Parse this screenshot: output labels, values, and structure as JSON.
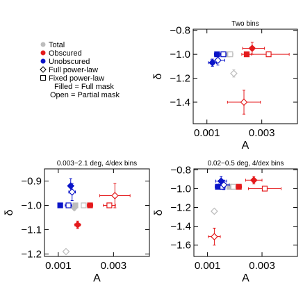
{
  "legend": {
    "entries": [
      {
        "label": "Total",
        "marker": "circle",
        "filled": true,
        "color": "#bdbdbd"
      },
      {
        "label": "Obscured",
        "marker": "circle",
        "filled": true,
        "color": "#e41a1c"
      },
      {
        "label": "Unobscured",
        "marker": "circle",
        "filled": true,
        "color": "#0a14c8"
      },
      {
        "label": "Full power-law",
        "marker": "diamond",
        "filled": false,
        "color": "#000000"
      },
      {
        "label": "Fixed power-law",
        "marker": "square",
        "filled": false,
        "color": "#000000"
      },
      {
        "label": "Filled = Full mask",
        "marker": "none"
      },
      {
        "label": "Open = Partial mask",
        "marker": "none"
      }
    ]
  },
  "colors": {
    "total": "#bdbdbd",
    "obscured": "#e41a1c",
    "unobscured": "#0a14c8",
    "axis": "#000000"
  },
  "chart_data": [
    {
      "type": "scatter",
      "title": "Two bins",
      "xlabel": "A",
      "ylabel": "δ",
      "xlim": [
        0.0005,
        0.0043
      ],
      "ylim": [
        -1.58,
        -0.79
      ],
      "xticks": [
        0.001,
        0.003
      ],
      "xtick_labels": [
        "0.001",
        "0.003"
      ],
      "yticks": [
        -0.8,
        -1.0,
        -1.2,
        -1.4
      ],
      "ytick_labels": [
        "−0.8",
        "−1.0",
        "−1.2",
        "−1.4"
      ],
      "points": [
        {
          "group": "total",
          "shape": "square",
          "filled": true,
          "x": 0.00175,
          "y": -1.0,
          "xerr": [
            0.0001,
            0.0001
          ],
          "yerr": [
            0.01,
            0.01
          ]
        },
        {
          "group": "total",
          "shape": "square",
          "filled": false,
          "x": 0.00185,
          "y": -1.0,
          "xerr": [
            0.0001,
            0.0001
          ],
          "yerr": [
            0.01,
            0.01
          ]
        },
        {
          "group": "total",
          "shape": "diamond",
          "filled": false,
          "x": 0.00198,
          "y": -1.16,
          "xerr": [
            8e-05,
            8e-05
          ],
          "yerr": [
            0.03,
            0.03
          ]
        },
        {
          "group": "obscured",
          "shape": "square",
          "filled": true,
          "x": 0.00245,
          "y": -1.0,
          "xerr": [
            0.00018,
            0.00018
          ],
          "yerr": [
            0.01,
            0.01
          ]
        },
        {
          "group": "obscured",
          "shape": "square",
          "filled": false,
          "x": 0.00325,
          "y": -1.0,
          "xerr": [
            0.00075,
            0.00075
          ],
          "yerr": [
            0.01,
            0.01
          ]
        },
        {
          "group": "obscured",
          "shape": "diamond",
          "filled": true,
          "x": 0.00265,
          "y": -0.95,
          "xerr": [
            0.00035,
            0.00045
          ],
          "yerr": [
            0.05,
            0.05
          ]
        },
        {
          "group": "obscured",
          "shape": "diamond",
          "filled": false,
          "x": 0.00235,
          "y": -1.4,
          "xerr": [
            0.0006,
            0.0006
          ],
          "yerr": [
            0.1,
            0.1
          ]
        },
        {
          "group": "unobscured",
          "shape": "square",
          "filled": true,
          "x": 0.00137,
          "y": -1.0,
          "xerr": [
            0.0001,
            0.0001
          ],
          "yerr": [
            0.01,
            0.01
          ]
        },
        {
          "group": "unobscured",
          "shape": "square",
          "filled": false,
          "x": 0.0016,
          "y": -1.0,
          "xerr": [
            0.0001,
            0.0001
          ],
          "yerr": [
            0.01,
            0.01
          ]
        },
        {
          "group": "unobscured",
          "shape": "diamond",
          "filled": true,
          "x": 0.0012,
          "y": -1.07,
          "xerr": [
            0.00015,
            0.00015
          ],
          "yerr": [
            0.03,
            0.03
          ]
        },
        {
          "group": "unobscured",
          "shape": "diamond",
          "filled": false,
          "x": 0.0014,
          "y": -1.05,
          "xerr": [
            0.00025,
            0.00025
          ],
          "yerr": [
            0.04,
            0.04
          ]
        }
      ]
    },
    {
      "type": "scatter",
      "title": "0.003−2.1 deg, 4/dex bins",
      "xlabel": "A",
      "ylabel": "δ",
      "xlim": [
        0.0005,
        0.0043
      ],
      "ylim": [
        -1.21,
        -0.85
      ],
      "xticks": [
        0.001,
        0.003
      ],
      "xtick_labels": [
        "0.001",
        "0.003"
      ],
      "yticks": [
        -0.9,
        -1.0,
        -1.1,
        -1.2
      ],
      "ytick_labels": [
        "−0.9",
        "−1.0",
        "−1.1",
        "−1.2"
      ],
      "points": [
        {
          "group": "total",
          "shape": "square",
          "filled": true,
          "x": 0.00162,
          "y": -1.0,
          "xerr": [
            8e-05,
            8e-05
          ],
          "yerr": [
            0.005,
            0.005
          ]
        },
        {
          "group": "total",
          "shape": "square",
          "filled": false,
          "x": 0.00192,
          "y": -1.0,
          "xerr": [
            8e-05,
            8e-05
          ],
          "yerr": [
            0.005,
            0.005
          ]
        },
        {
          "group": "total",
          "shape": "diamond",
          "filled": true,
          "x": 0.00158,
          "y": -1.01,
          "xerr": [
            5e-05,
            5e-05
          ],
          "yerr": [
            0.01,
            0.01
          ]
        },
        {
          "group": "total",
          "shape": "diamond",
          "filled": false,
          "x": 0.00128,
          "y": -1.19,
          "xerr": [
            8e-05,
            8e-05
          ],
          "yerr": [
            0.008,
            0.008
          ]
        },
        {
          "group": "obscured",
          "shape": "square",
          "filled": true,
          "x": 0.00215,
          "y": -1.0,
          "xerr": [
            0.0001,
            0.0001
          ],
          "yerr": [
            0.005,
            0.005
          ]
        },
        {
          "group": "obscured",
          "shape": "square",
          "filled": false,
          "x": 0.00285,
          "y": -1.0,
          "xerr": [
            0.00022,
            0.00022
          ],
          "yerr": [
            0.005,
            0.005
          ]
        },
        {
          "group": "obscured",
          "shape": "diamond",
          "filled": true,
          "x": 0.0017,
          "y": -1.08,
          "xerr": [
            0.0001,
            0.0001
          ],
          "yerr": [
            0.015,
            0.015
          ]
        },
        {
          "group": "obscured",
          "shape": "diamond",
          "filled": false,
          "x": 0.00305,
          "y": -0.96,
          "xerr": [
            0.00055,
            0.00055
          ],
          "yerr": [
            0.05,
            0.05
          ]
        },
        {
          "group": "unobscured",
          "shape": "square",
          "filled": true,
          "x": 0.00107,
          "y": -1.0,
          "xerr": [
            5e-05,
            5e-05
          ],
          "yerr": [
            0.005,
            0.005
          ]
        },
        {
          "group": "unobscured",
          "shape": "square",
          "filled": false,
          "x": 0.00137,
          "y": -1.0,
          "xerr": [
            0.00012,
            0.00012
          ],
          "yerr": [
            0.005,
            0.005
          ]
        },
        {
          "group": "unobscured",
          "shape": "diamond",
          "filled": true,
          "x": 0.00145,
          "y": -0.92,
          "xerr": [
            5e-05,
            5e-05
          ],
          "yerr": [
            0.03,
            0.03
          ]
        },
        {
          "group": "unobscured",
          "shape": "diamond",
          "filled": false,
          "x": 0.0015,
          "y": -0.945,
          "xerr": [
            0.00012,
            0.00012
          ],
          "yerr": [
            0.035,
            0.035
          ]
        }
      ]
    },
    {
      "type": "scatter",
      "title": "0.02−0.5 deg, 4/dex bins",
      "xlabel": "A",
      "ylabel": "δ",
      "xlim": [
        0.0005,
        0.0043
      ],
      "ylim": [
        -1.72,
        -0.79
      ],
      "xticks": [
        0.001,
        0.003
      ],
      "xtick_labels": [
        "0.001",
        "0.003"
      ],
      "yticks": [
        -0.8,
        -1.0,
        -1.2,
        -1.4,
        -1.6
      ],
      "ytick_labels": [
        "−0.8",
        "−1.0",
        "−1.2",
        "−1.4",
        "−1.6"
      ],
      "points": [
        {
          "group": "total",
          "shape": "square",
          "filled": true,
          "x": 0.0018,
          "y": -0.98,
          "xerr": [
            8e-05,
            8e-05
          ],
          "yerr": [
            0.01,
            0.01
          ]
        },
        {
          "group": "total",
          "shape": "square",
          "filled": false,
          "x": 0.00195,
          "y": -0.98,
          "xerr": [
            0.0001,
            0.0001
          ],
          "yerr": [
            0.01,
            0.01
          ]
        },
        {
          "group": "total",
          "shape": "diamond",
          "filled": false,
          "x": 0.00125,
          "y": -1.24,
          "xerr": [
            8e-05,
            8e-05
          ],
          "yerr": [
            0.025,
            0.025
          ]
        },
        {
          "group": "obscured",
          "shape": "square",
          "filled": true,
          "x": 0.00215,
          "y": -0.98,
          "xerr": [
            0.0001,
            0.0001
          ],
          "yerr": [
            0.01,
            0.01
          ]
        },
        {
          "group": "obscured",
          "shape": "square",
          "filled": false,
          "x": 0.0031,
          "y": -1.0,
          "xerr": [
            0.0006,
            0.0006
          ],
          "yerr": [
            0.01,
            0.01
          ]
        },
        {
          "group": "obscured",
          "shape": "diamond",
          "filled": true,
          "x": 0.0027,
          "y": -0.91,
          "xerr": [
            0.0003,
            0.0003
          ],
          "yerr": [
            0.04,
            0.04
          ]
        },
        {
          "group": "obscured",
          "shape": "diamond",
          "filled": false,
          "x": 0.00125,
          "y": -1.51,
          "xerr": [
            0.00022,
            0.00022
          ],
          "yerr": [
            0.09,
            0.09
          ]
        },
        {
          "group": "unobscured",
          "shape": "square",
          "filled": true,
          "x": 0.00138,
          "y": -0.98,
          "xerr": [
            0.0001,
            0.0001
          ],
          "yerr": [
            0.01,
            0.01
          ]
        },
        {
          "group": "unobscured",
          "shape": "square",
          "filled": false,
          "x": 0.00155,
          "y": -0.98,
          "xerr": [
            0.0001,
            0.0001
          ],
          "yerr": [
            0.01,
            0.01
          ]
        },
        {
          "group": "unobscured",
          "shape": "diamond",
          "filled": true,
          "x": 0.0015,
          "y": -0.92,
          "xerr": [
            0.0002,
            0.0002
          ],
          "yerr": [
            0.05,
            0.05
          ]
        },
        {
          "group": "unobscured",
          "shape": "diamond",
          "filled": false,
          "x": 0.0016,
          "y": -0.96,
          "xerr": [
            0.0002,
            0.0002
          ],
          "yerr": [
            0.05,
            0.05
          ]
        }
      ]
    }
  ]
}
